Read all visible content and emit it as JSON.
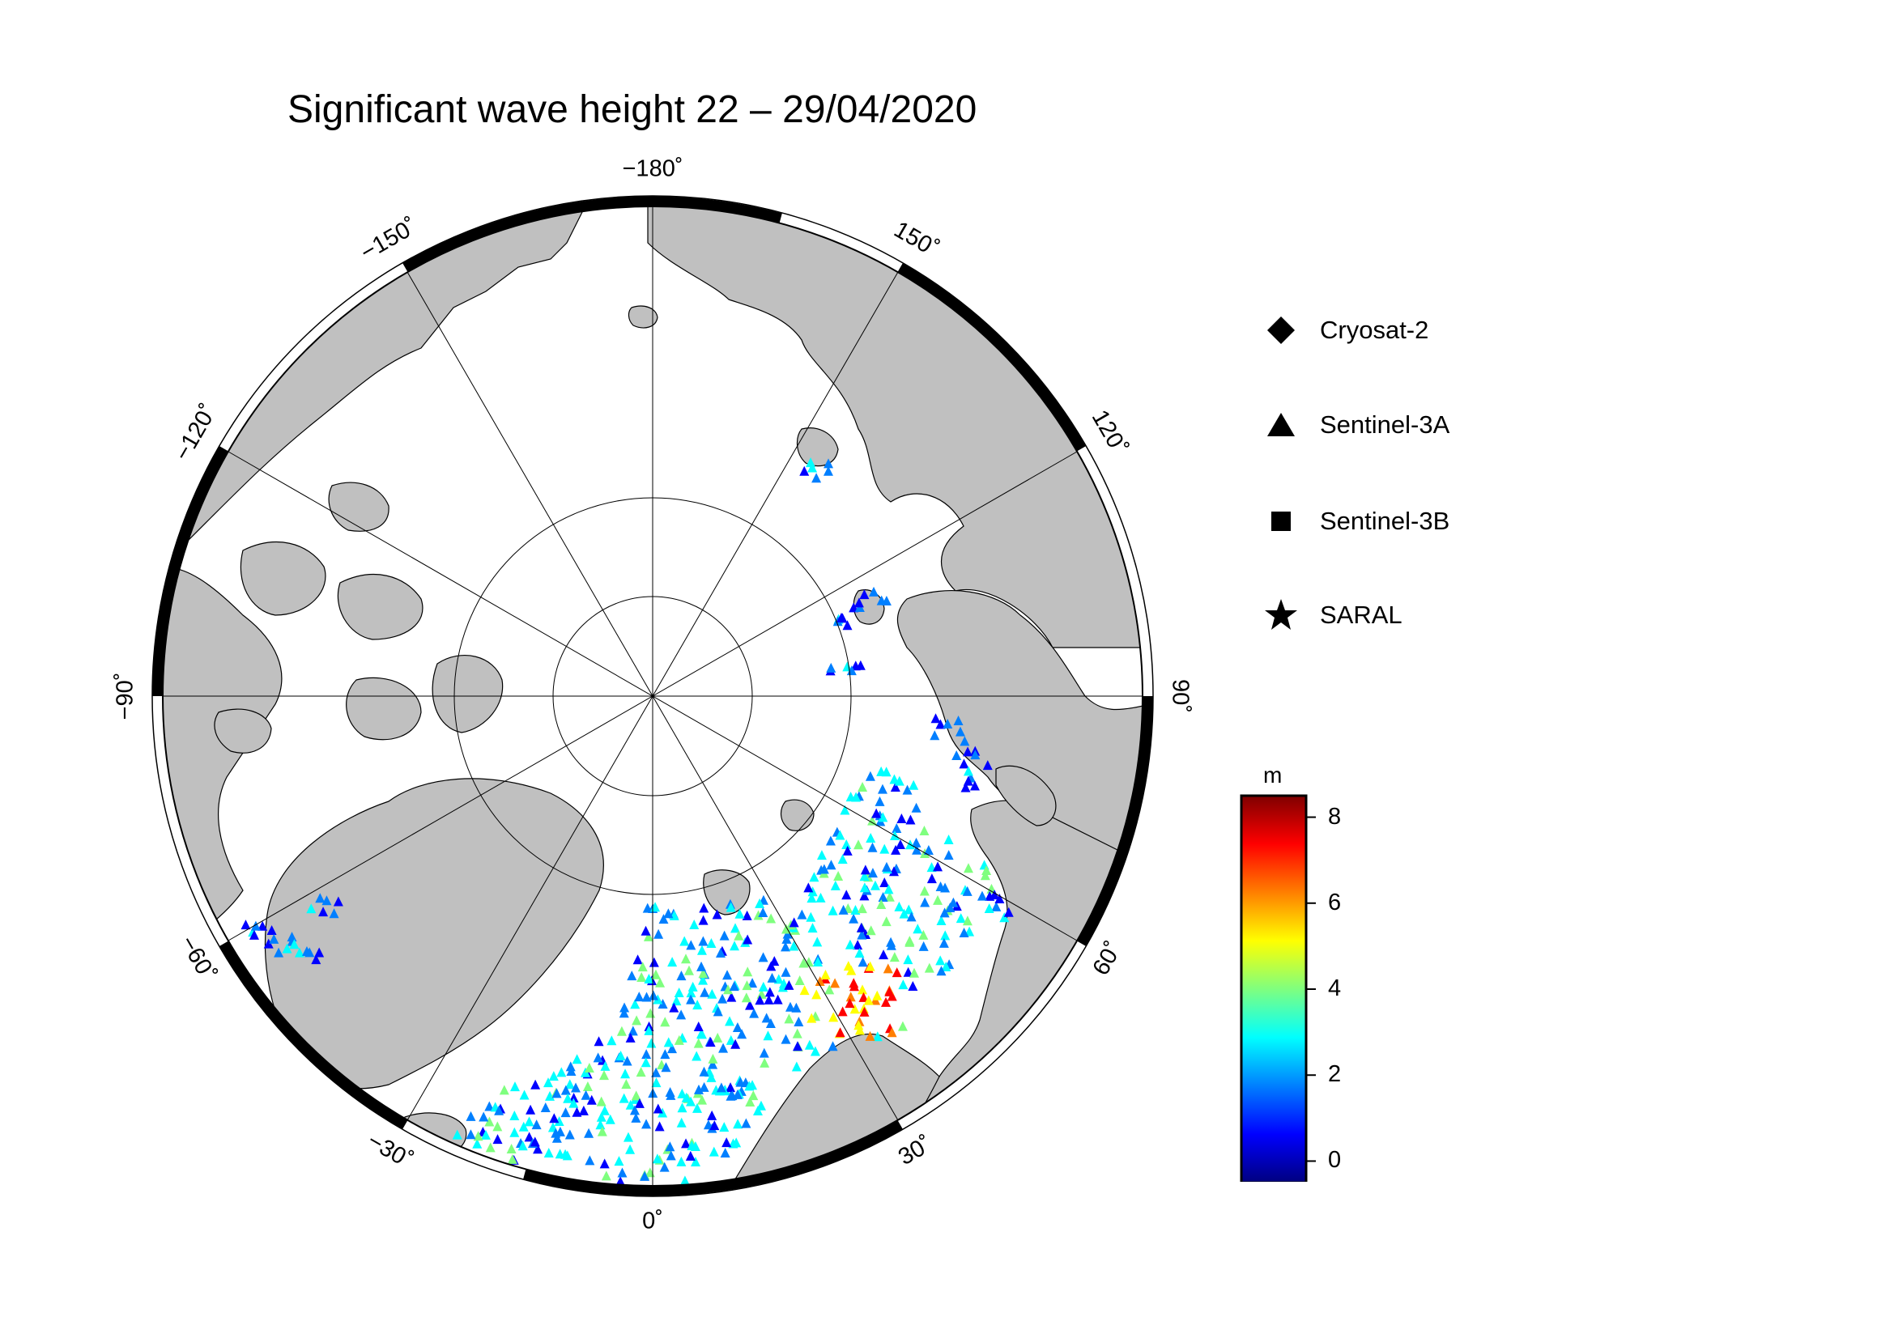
{
  "title": "Significant wave height 22 – 29/04/2020",
  "map": {
    "projection": "north-polar-stereographic",
    "longitude_labels": [
      "−180˚",
      "150˚",
      "120˚",
      "90˚",
      "60˚",
      "30˚",
      "0˚",
      "−30˚",
      "−60˚",
      "−90˚",
      "−120˚",
      "−150˚"
    ],
    "colors": {
      "land": "#c0c0c0",
      "ocean": "#ffffff",
      "grid": "#000000"
    }
  },
  "legend": {
    "items": [
      {
        "label": "Cryosat-2",
        "symbol": "diamond"
      },
      {
        "label": "Sentinel-3A",
        "symbol": "triangle"
      },
      {
        "label": "Sentinel-3B",
        "symbol": "square"
      },
      {
        "label": "SARAL",
        "symbol": "star"
      }
    ]
  },
  "colorbar": {
    "unit": "m",
    "range": [
      -0.5,
      8.5
    ],
    "ticks": [
      "0",
      "2",
      "4",
      "6",
      "8"
    ],
    "colormap": [
      "#00007f",
      "#0000ff",
      "#007fff",
      "#00ffff",
      "#7fff7f",
      "#ffff00",
      "#ff7f00",
      "#ff0000",
      "#7f0000"
    ]
  }
}
